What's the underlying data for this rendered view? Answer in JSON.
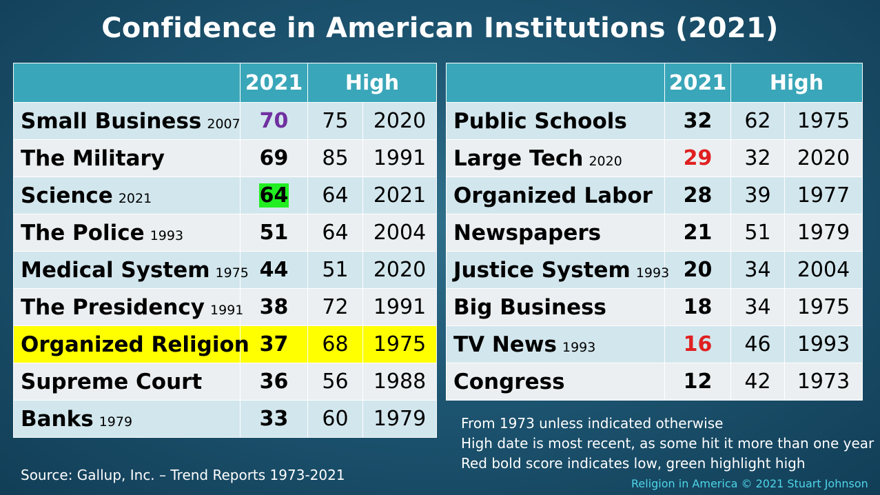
{
  "title": "Confidence in American Institutions (2021)",
  "left_table": {
    "headers": [
      "",
      "2021",
      "High"
    ],
    "rows": [
      {
        "name": "Small Business",
        "since": "2007",
        "score": "70",
        "high": "75",
        "high_year": "2020",
        "style": "purple"
      },
      {
        "name": "The Military",
        "since": "",
        "score": "69",
        "high": "85",
        "high_year": "1991",
        "style": ""
      },
      {
        "name": "Science",
        "since": "2021",
        "score": "64",
        "high": "64",
        "high_year": "2021",
        "style": "green"
      },
      {
        "name": "The Police",
        "since": "1993",
        "score": "51",
        "high": "64",
        "high_year": "2004",
        "style": ""
      },
      {
        "name": "Medical System",
        "since": "1975",
        "score": "44",
        "high": "51",
        "high_year": "2020",
        "style": ""
      },
      {
        "name": "The Presidency",
        "since": "1991",
        "score": "38",
        "high": "72",
        "high_year": "1991",
        "style": ""
      },
      {
        "name": "Organized Religion",
        "since": "",
        "score": "37",
        "high": "68",
        "high_year": "1975",
        "style": "highlight"
      },
      {
        "name": "Supreme Court",
        "since": "",
        "score": "36",
        "high": "56",
        "high_year": "1988",
        "style": ""
      },
      {
        "name": "Banks",
        "since": "1979",
        "score": "33",
        "high": "60",
        "high_year": "1979",
        "style": ""
      }
    ]
  },
  "right_table": {
    "headers": [
      "",
      "2021",
      "High"
    ],
    "rows": [
      {
        "name": "Public Schools",
        "since": "",
        "score": "32",
        "high": "62",
        "high_year": "1975",
        "style": ""
      },
      {
        "name": "Large Tech",
        "since": "2020",
        "score": "29",
        "high": "32",
        "high_year": "2020",
        "style": "red"
      },
      {
        "name": "Organized Labor",
        "since": "",
        "score": "28",
        "high": "39",
        "high_year": "1977",
        "style": ""
      },
      {
        "name": "Newspapers",
        "since": "",
        "score": "21",
        "high": "51",
        "high_year": "1979",
        "style": ""
      },
      {
        "name": "Justice System",
        "since": "1993",
        "score": "20",
        "high": "34",
        "high_year": "2004",
        "style": ""
      },
      {
        "name": "Big Business",
        "since": "",
        "score": "18",
        "high": "34",
        "high_year": "1975",
        "style": ""
      },
      {
        "name": "TV News",
        "since": "1993",
        "score": "16",
        "high": "46",
        "high_year": "1993",
        "style": "red"
      },
      {
        "name": "Congress",
        "since": "",
        "score": "12",
        "high": "42",
        "high_year": "1973",
        "style": ""
      }
    ]
  },
  "notes": [
    "From 1973 unless indicated otherwise",
    "High date is most recent, as some hit it more than one year",
    "Red bold score indicates low, green highlight high"
  ],
  "source": "Source: Gallup, Inc. – Trend Reports 1973-2021",
  "credit": "Religion in America © 2021 Stuart Johnson",
  "colors": {
    "header_bg": "#3aa6b9",
    "row_alt": "#d2e6ed",
    "row_plain": "#ebeff1",
    "highlight": "#ffff00",
    "low_red": "#e02020",
    "high_green": "#22ee22",
    "purple": "#7030a0"
  }
}
